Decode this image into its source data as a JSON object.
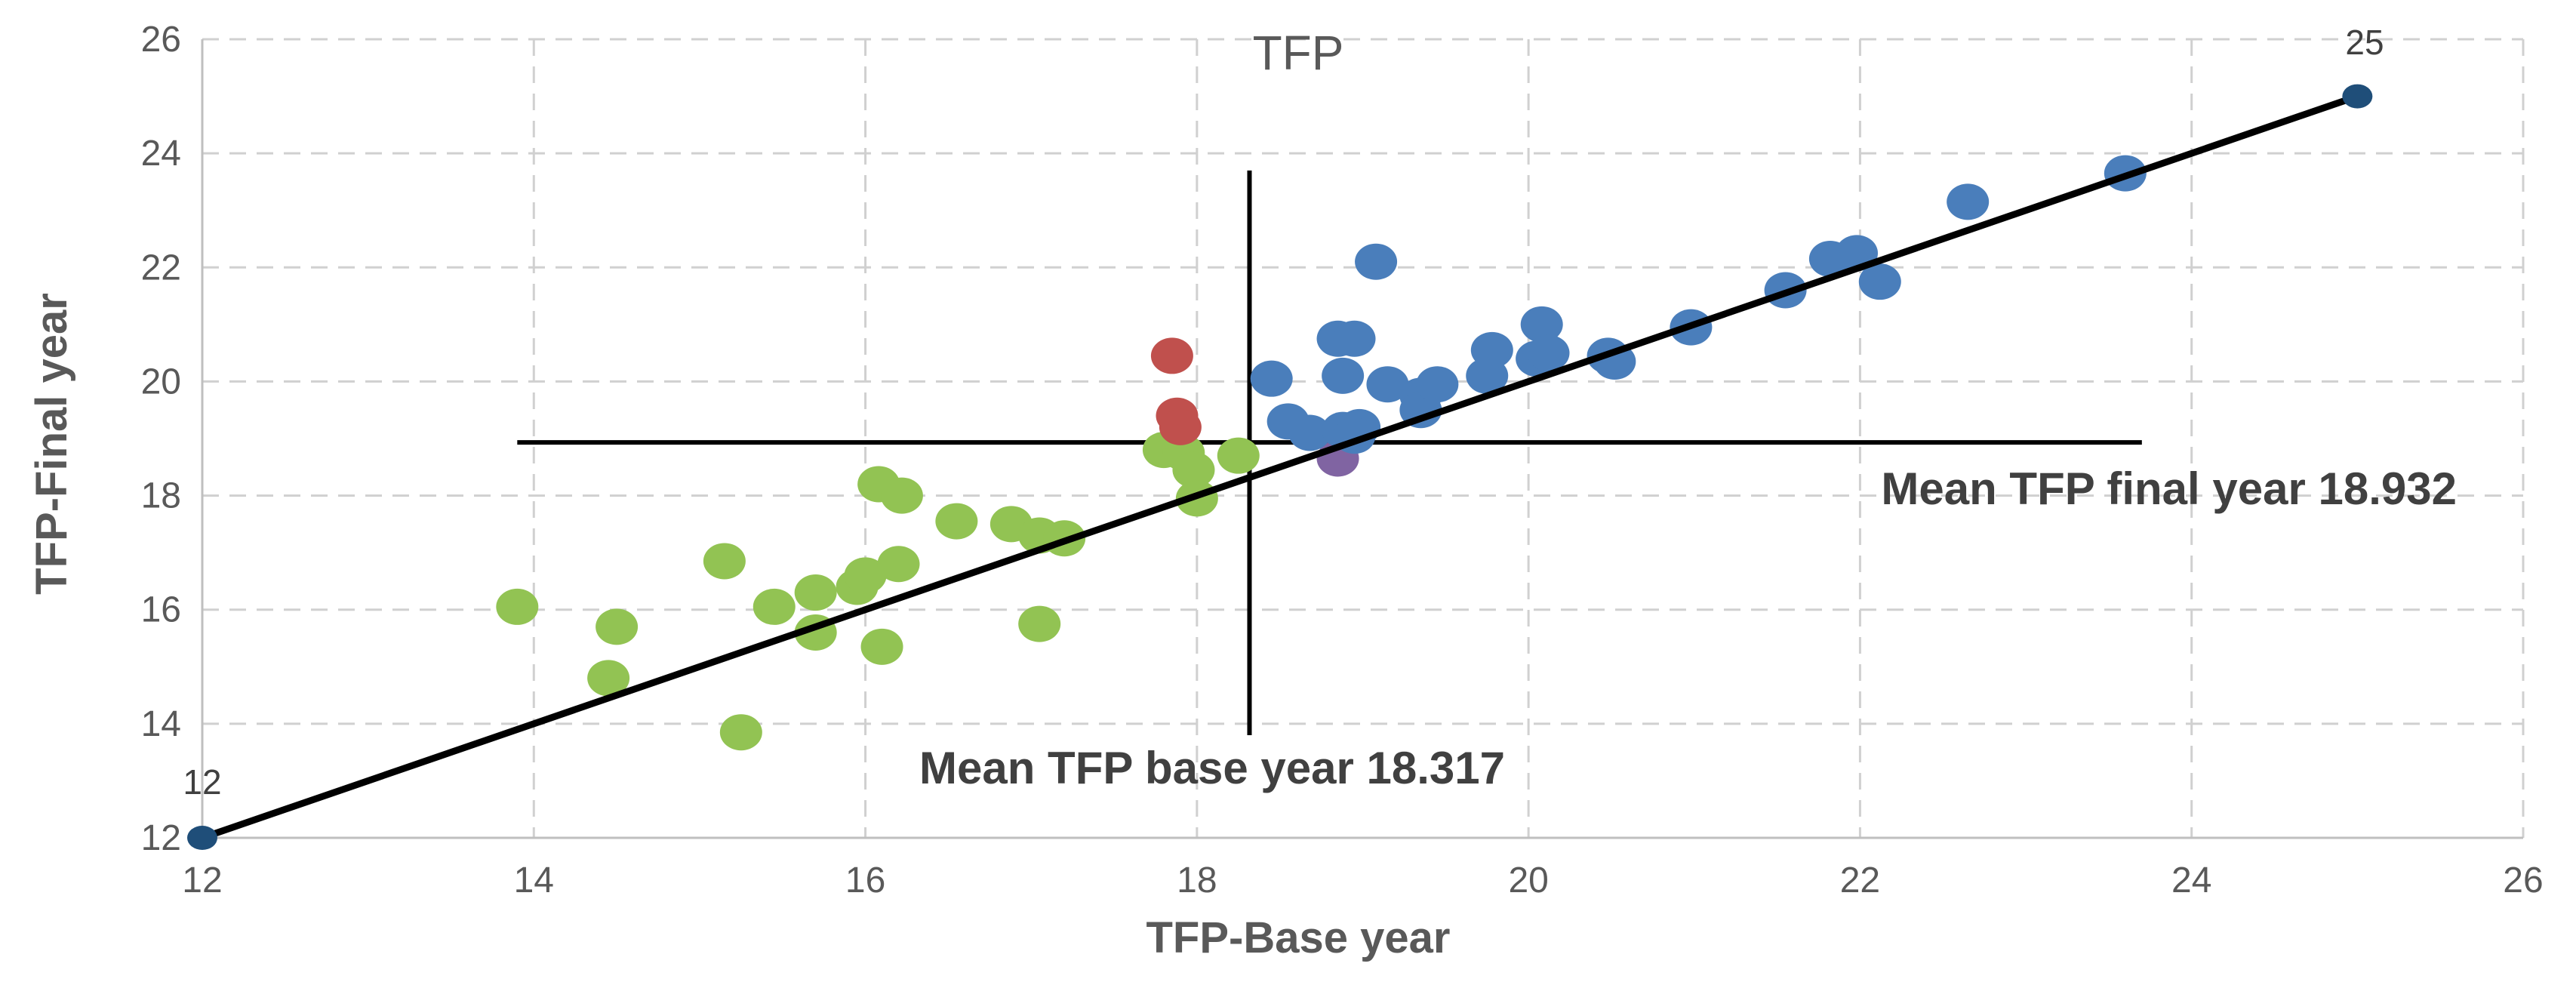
{
  "chart_data": {
    "type": "scatter",
    "title": "TFP",
    "xlabel": "TFP-Base year",
    "ylabel": "TFP-Final year",
    "xlim": [
      12,
      26
    ],
    "ylim": [
      12,
      26
    ],
    "xticks": [
      12,
      14,
      16,
      18,
      20,
      22,
      24,
      26
    ],
    "yticks": [
      12,
      14,
      16,
      18,
      20,
      22,
      24,
      26
    ],
    "x_tick_labels": [
      "12",
      "14",
      "16",
      "18",
      "20",
      "22",
      "24",
      "26"
    ],
    "y_tick_labels": [
      "12",
      "14",
      "16",
      "18",
      "20",
      "22",
      "24",
      "26"
    ],
    "grid": true,
    "diagonal": {
      "start": {
        "x": 12,
        "y": 12,
        "label": "12"
      },
      "end": {
        "x": 25,
        "y": 25,
        "label": "25"
      },
      "color": "#000000",
      "endpoint_color": "#1f4e79"
    },
    "mean_base": {
      "value": 18.317,
      "y_range": [
        13.8,
        23.7
      ],
      "label": "Mean TFP base year 18.317"
    },
    "mean_final": {
      "value": 18.932,
      "x_range": [
        13.9,
        23.7
      ],
      "label": "Mean TFP final year 18.932"
    },
    "series": [
      {
        "name": "green",
        "color": "#92c353",
        "points": [
          {
            "x": 13.9,
            "y": 16.05
          },
          {
            "x": 14.5,
            "y": 15.7
          },
          {
            "x": 14.45,
            "y": 14.8
          },
          {
            "x": 15.15,
            "y": 16.85
          },
          {
            "x": 15.25,
            "y": 13.85
          },
          {
            "x": 15.45,
            "y": 16.05
          },
          {
            "x": 15.7,
            "y": 15.6
          },
          {
            "x": 15.7,
            "y": 16.3
          },
          {
            "x": 15.95,
            "y": 16.4
          },
          {
            "x": 16.0,
            "y": 16.6
          },
          {
            "x": 16.08,
            "y": 18.2
          },
          {
            "x": 16.1,
            "y": 15.35
          },
          {
            "x": 16.2,
            "y": 16.8
          },
          {
            "x": 16.22,
            "y": 18.0
          },
          {
            "x": 16.55,
            "y": 17.55
          },
          {
            "x": 16.88,
            "y": 17.5
          },
          {
            "x": 17.05,
            "y": 17.3
          },
          {
            "x": 17.2,
            "y": 17.25
          },
          {
            "x": 17.05,
            "y": 15.75
          },
          {
            "x": 17.8,
            "y": 18.8
          },
          {
            "x": 17.92,
            "y": 18.75
          },
          {
            "x": 17.98,
            "y": 18.45
          },
          {
            "x": 18.0,
            "y": 17.95
          },
          {
            "x": 18.25,
            "y": 18.7
          }
        ]
      },
      {
        "name": "red",
        "color": "#c0504d",
        "points": [
          {
            "x": 17.85,
            "y": 20.45
          },
          {
            "x": 17.88,
            "y": 19.4
          },
          {
            "x": 17.9,
            "y": 19.2
          }
        ]
      },
      {
        "name": "purple",
        "color": "#8064a2",
        "points": [
          {
            "x": 18.85,
            "y": 18.65
          }
        ]
      },
      {
        "name": "blue",
        "color": "#4a7ebb",
        "points": [
          {
            "x": 18.45,
            "y": 20.05
          },
          {
            "x": 18.55,
            "y": 19.3
          },
          {
            "x": 18.68,
            "y": 19.1
          },
          {
            "x": 18.85,
            "y": 20.75
          },
          {
            "x": 18.95,
            "y": 20.75
          },
          {
            "x": 18.88,
            "y": 20.1
          },
          {
            "x": 18.88,
            "y": 19.15
          },
          {
            "x": 18.98,
            "y": 19.2
          },
          {
            "x": 18.95,
            "y": 19.05
          },
          {
            "x": 19.08,
            "y": 22.1
          },
          {
            "x": 19.15,
            "y": 19.95
          },
          {
            "x": 19.35,
            "y": 19.75
          },
          {
            "x": 19.35,
            "y": 19.5
          },
          {
            "x": 19.45,
            "y": 19.95
          },
          {
            "x": 19.75,
            "y": 20.1
          },
          {
            "x": 19.78,
            "y": 20.55
          },
          {
            "x": 20.08,
            "y": 21.0
          },
          {
            "x": 20.05,
            "y": 20.4
          },
          {
            "x": 20.12,
            "y": 20.5
          },
          {
            "x": 20.48,
            "y": 20.45
          },
          {
            "x": 20.52,
            "y": 20.35
          },
          {
            "x": 20.98,
            "y": 20.95
          },
          {
            "x": 21.55,
            "y": 21.6
          },
          {
            "x": 21.82,
            "y": 22.15
          },
          {
            "x": 21.98,
            "y": 22.25
          },
          {
            "x": 22.12,
            "y": 21.75
          },
          {
            "x": 22.65,
            "y": 23.15
          },
          {
            "x": 23.6,
            "y": 23.65
          }
        ]
      }
    ]
  }
}
